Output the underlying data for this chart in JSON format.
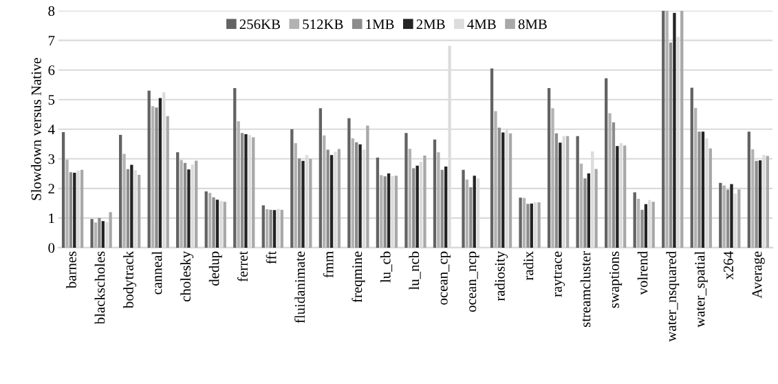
{
  "chart_data": {
    "type": "bar",
    "ylabel": "Slowdown versus Native",
    "categories": [
      "barnes",
      "blackscholes",
      "bodytrack",
      "canneal",
      "cholesky",
      "dedup",
      "ferret",
      "fft",
      "fluidanimate",
      "fmm",
      "freqmine",
      "lu_cb",
      "lu_ncb",
      "ocean_cp",
      "ocean_ncp",
      "radiosity",
      "radix",
      "raytrace",
      "streamcluster",
      "swaptions",
      "volrend",
      "water_nsquared",
      "water_spatial",
      "x264",
      "Average"
    ],
    "series": [
      {
        "name": "256KB",
        "color": "#636363",
        "values": [
          3.9,
          0.97,
          3.81,
          5.3,
          3.22,
          1.9,
          5.39,
          1.43,
          4.0,
          4.71,
          4.37,
          3.04,
          3.87,
          3.65,
          2.63,
          6.05,
          1.69,
          5.39,
          3.77,
          5.72,
          1.87,
          8,
          5.4,
          2.19,
          3.92
        ]
      },
      {
        "name": "512KB",
        "color": "#b2b2b2",
        "values": [
          2.97,
          0.85,
          3.17,
          4.78,
          2.96,
          1.85,
          4.27,
          1.3,
          3.53,
          3.79,
          3.69,
          2.45,
          3.34,
          3.22,
          2.3,
          4.61,
          1.68,
          4.71,
          2.84,
          4.54,
          1.65,
          8,
          4.72,
          2.1,
          3.32
        ]
      },
      {
        "name": "1MB",
        "color": "#8c8c8c",
        "values": [
          2.55,
          1.0,
          2.65,
          4.73,
          2.86,
          1.7,
          3.87,
          1.28,
          3.01,
          3.31,
          3.56,
          2.41,
          2.68,
          2.63,
          2.04,
          4.05,
          1.48,
          3.86,
          2.34,
          4.23,
          1.28,
          6.93,
          3.92,
          1.96,
          2.93
        ]
      },
      {
        "name": "2MB",
        "color": "#232323",
        "values": [
          2.53,
          0.9,
          2.8,
          5.05,
          2.64,
          1.62,
          3.83,
          1.27,
          2.93,
          3.13,
          3.49,
          2.51,
          2.77,
          2.74,
          2.43,
          3.89,
          1.49,
          3.55,
          2.51,
          3.43,
          1.47,
          7.93,
          3.92,
          2.15,
          2.95
        ]
      },
      {
        "name": "4MB",
        "color": "#dcdcdc",
        "values": [
          2.6,
          0.87,
          2.62,
          5.25,
          2.81,
          1.58,
          3.8,
          1.31,
          3.13,
          3.24,
          3.31,
          2.42,
          2.9,
          6.82,
          2.34,
          4.0,
          1.53,
          3.77,
          3.25,
          3.53,
          1.61,
          7.12,
          3.69,
          1.83,
          3.13
        ]
      },
      {
        "name": "8MB",
        "color": "#a8a8a8",
        "values": [
          2.63,
          1.2,
          2.46,
          4.44,
          2.94,
          1.55,
          3.73,
          1.28,
          3.0,
          3.33,
          4.12,
          2.43,
          3.11,
          null,
          null,
          3.86,
          1.53,
          3.77,
          2.66,
          3.45,
          1.55,
          8,
          3.35,
          1.97,
          3.1
        ]
      }
    ],
    "ylim": [
      0,
      8
    ],
    "yticks": [
      0,
      1,
      2,
      3,
      4,
      5,
      6,
      7,
      8
    ],
    "grid": "y",
    "legend": "top"
  }
}
